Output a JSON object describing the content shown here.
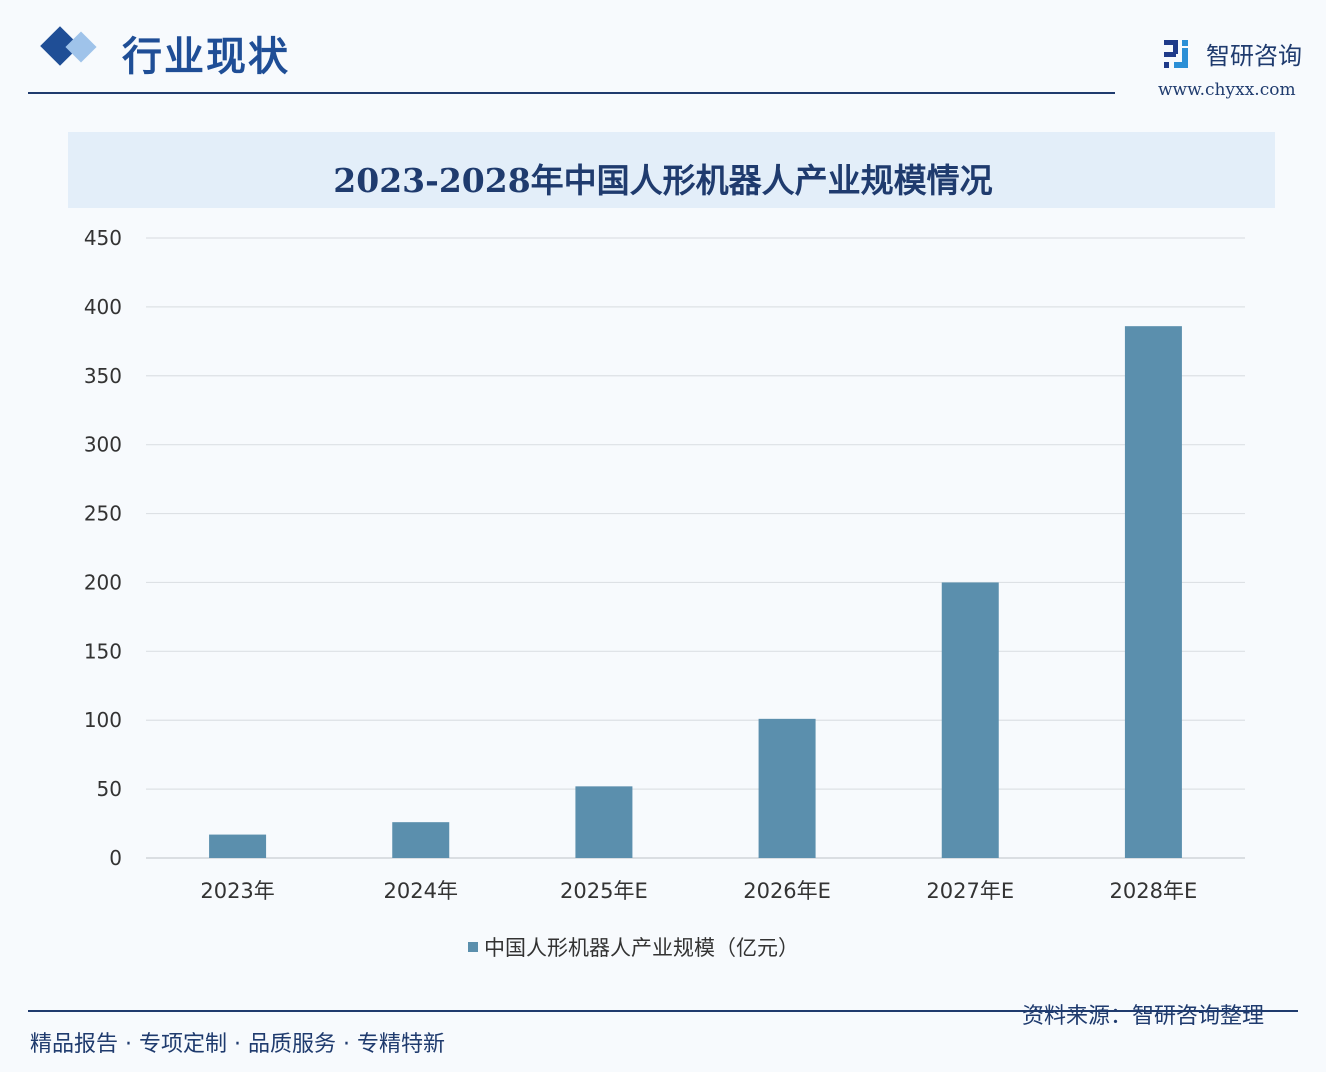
{
  "header": {
    "title": "行业现状"
  },
  "brand": {
    "name": "智研咨询",
    "url": "www.chyxx.com"
  },
  "footer": {
    "slogan": "精品报告 · 专项定制 · 品质服务 · 专精特新",
    "source": "资料来源：智研咨询整理"
  },
  "colors": {
    "bar": "#5b8fad",
    "accent": "#1f3b6e",
    "title_band": "#e3eef9"
  },
  "chart_data": {
    "type": "bar",
    "title": "2023-2028年中国人形机器人产业规模情况",
    "categories": [
      "2023年",
      "2024年",
      "2025年E",
      "2026年E",
      "2027年E",
      "2028年E"
    ],
    "series": [
      {
        "name": "中国人形机器人产业规模（亿元）",
        "values": [
          17,
          26,
          52,
          101,
          200,
          386
        ]
      }
    ],
    "ylim": [
      0,
      450
    ],
    "yticks": [
      0,
      50,
      100,
      150,
      200,
      250,
      300,
      350,
      400,
      450
    ],
    "grid": true,
    "legend": "bottom"
  }
}
